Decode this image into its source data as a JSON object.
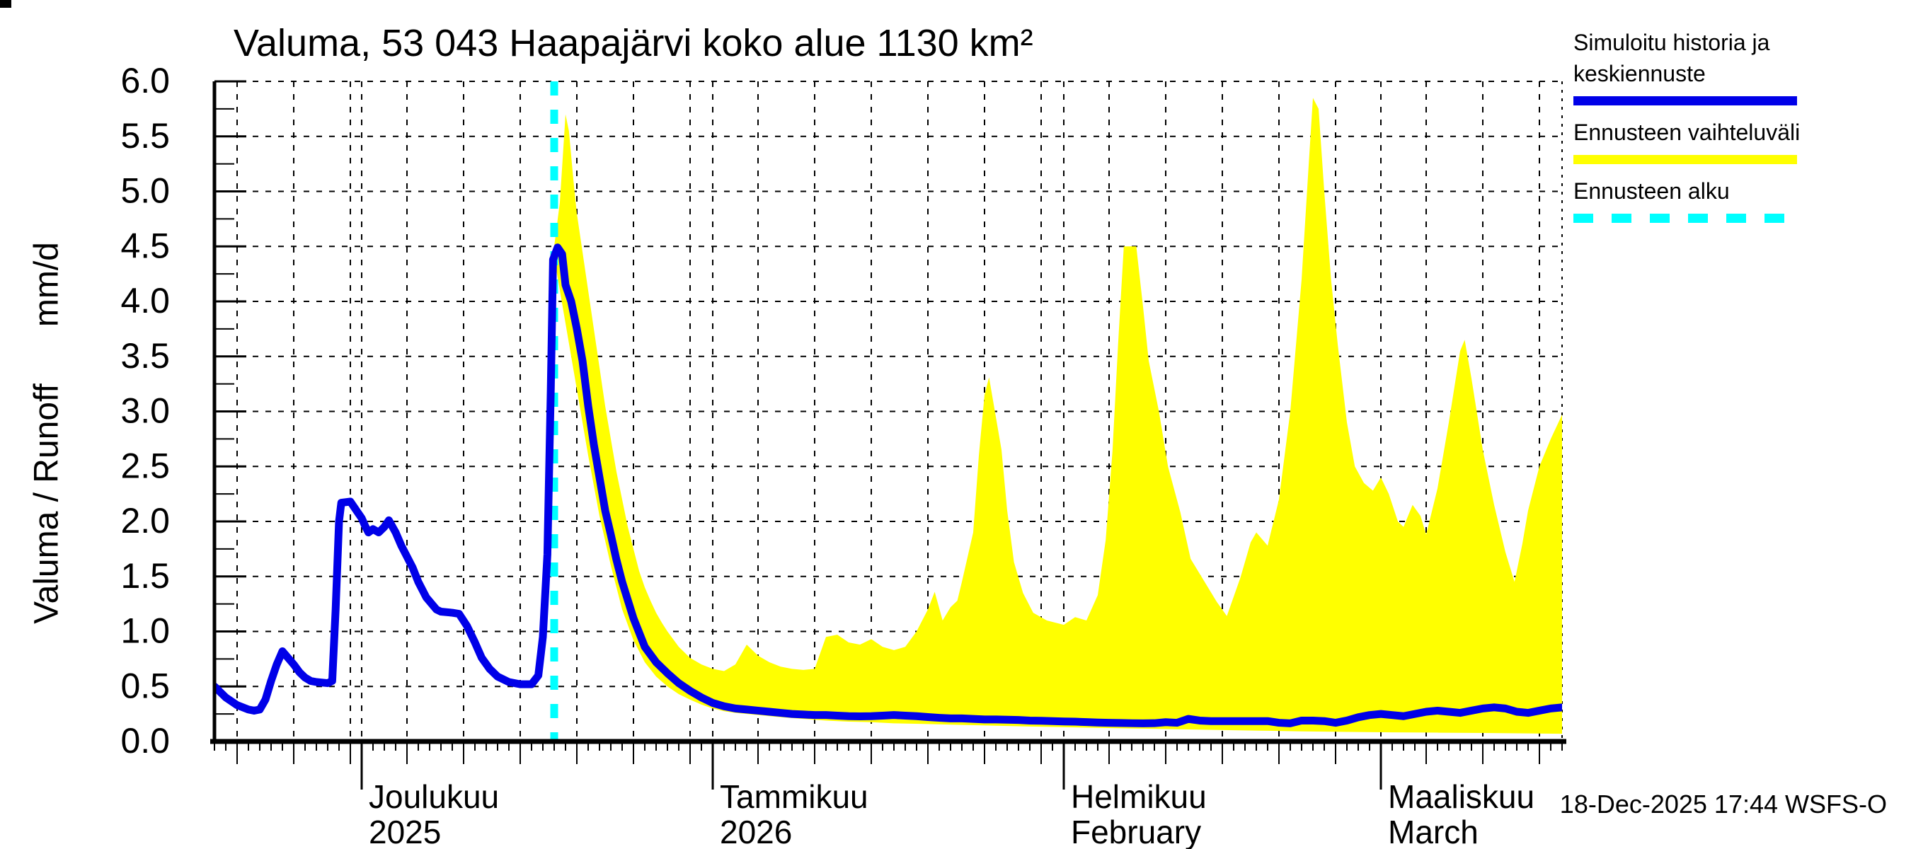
{
  "title": "Valuma, 53 043 Haapajärvi koko alue 1130 km²",
  "timestamp": "18-Dec-2025 17:44 WSFS-O",
  "y_axis": {
    "label": "Valuma / Runoff      mm/d",
    "ticks": [
      {
        "v": 0.0,
        "label": "0.0"
      },
      {
        "v": 0.5,
        "label": "0.5"
      },
      {
        "v": 1.0,
        "label": "1.0"
      },
      {
        "v": 1.5,
        "label": "1.5"
      },
      {
        "v": 2.0,
        "label": "2.0"
      },
      {
        "v": 2.5,
        "label": "2.5"
      },
      {
        "v": 3.0,
        "label": "3.0"
      },
      {
        "v": 3.5,
        "label": "3.5"
      },
      {
        "v": 4.0,
        "label": "4.0"
      },
      {
        "v": 4.5,
        "label": "4.5"
      },
      {
        "v": 5.0,
        "label": "5.0"
      },
      {
        "v": 5.5,
        "label": "5.5"
      },
      {
        "v": 6.0,
        "label": "6.0"
      }
    ]
  },
  "legend": {
    "items": [
      {
        "lines": [
          "Simuloitu historia ja",
          "keskiennuste"
        ],
        "color": "#0000e8",
        "style": "solid"
      },
      {
        "lines": [
          "Ennusteen vaihteluväli"
        ],
        "color": "#ffff00",
        "style": "solid"
      },
      {
        "lines": [
          "Ennusteen alku"
        ],
        "color": "#00ffff",
        "style": "dashed"
      }
    ]
  },
  "chart_data": {
    "type": "line+band",
    "title": "Valuma, 53 043 Haapajärvi koko alue 1130 km²",
    "ylabel": "Valuma / Runoff mm/d",
    "ylim": [
      0,
      6
    ],
    "xlim": [
      0,
      119
    ],
    "x_unit": "days from left edge of plot (day 13 = 1 Dec 2025)",
    "forecast_start_day": 30,
    "grid": "both, dashed",
    "colors": {
      "history_and_mean": "#0000e8",
      "range_band": "#ffff00",
      "forecast_start": "#00ffff"
    },
    "month_ticks": [
      {
        "day": 13,
        "line1": "Joulukuu",
        "line2": "2025"
      },
      {
        "day": 44,
        "line1": "Tammikuu",
        "line2": "2026"
      },
      {
        "day": 75,
        "line1": "Helmikuu",
        "line2": "February"
      },
      {
        "day": 103,
        "line1": "Maaliskuu",
        "line2": "March"
      }
    ],
    "x_grid_days": [
      2,
      7,
      12,
      13,
      17,
      22,
      27,
      32,
      37,
      42,
      44,
      48,
      53,
      58,
      63,
      68,
      73,
      75,
      79,
      84,
      89,
      94,
      99,
      103,
      107,
      112,
      117
    ],
    "series": [
      {
        "name": "Simuloitu historia ja keskiennuste (history)",
        "points": [
          [
            0,
            0.5
          ],
          [
            1,
            0.4
          ],
          [
            2,
            0.33
          ],
          [
            3,
            0.29
          ],
          [
            3.5,
            0.28
          ],
          [
            4,
            0.29
          ],
          [
            4.5,
            0.38
          ],
          [
            5,
            0.55
          ],
          [
            5.5,
            0.7
          ],
          [
            6,
            0.82
          ],
          [
            6.5,
            0.76
          ],
          [
            7,
            0.7
          ],
          [
            7.5,
            0.63
          ],
          [
            8,
            0.58
          ],
          [
            8.5,
            0.55
          ],
          [
            9,
            0.54
          ],
          [
            10,
            0.53
          ],
          [
            10.4,
            0.55
          ],
          [
            10.7,
            1.2
          ],
          [
            11,
            2.0
          ],
          [
            11.2,
            2.17
          ],
          [
            12,
            2.18
          ],
          [
            12.4,
            2.12
          ],
          [
            13,
            2.03
          ],
          [
            13.3,
            1.96
          ],
          [
            13.6,
            1.9
          ],
          [
            14,
            1.93
          ],
          [
            14.5,
            1.9
          ],
          [
            15,
            1.95
          ],
          [
            15.4,
            2.01
          ],
          [
            16,
            1.9
          ],
          [
            16.5,
            1.78
          ],
          [
            17,
            1.68
          ],
          [
            17.5,
            1.58
          ],
          [
            18,
            1.45
          ],
          [
            18.7,
            1.31
          ],
          [
            19.6,
            1.2
          ],
          [
            20,
            1.18
          ],
          [
            21,
            1.17
          ],
          [
            21.6,
            1.16
          ],
          [
            22.3,
            1.05
          ],
          [
            23,
            0.9
          ],
          [
            23.6,
            0.76
          ],
          [
            24.3,
            0.66
          ],
          [
            25,
            0.59
          ],
          [
            26,
            0.54
          ],
          [
            27,
            0.52
          ],
          [
            28,
            0.52
          ],
          [
            28.6,
            0.6
          ],
          [
            29,
            0.95
          ],
          [
            29.4,
            1.7
          ],
          [
            29.7,
            3.2
          ],
          [
            29.9,
            4.38
          ],
          [
            30.3,
            4.49
          ],
          [
            30.7,
            4.43
          ]
        ]
      },
      {
        "name": "Simuloitu historia ja keskiennuste (mean forecast)",
        "points": [
          [
            30.7,
            4.43
          ],
          [
            31,
            4.15
          ],
          [
            31.5,
            4.0
          ],
          [
            32,
            3.75
          ],
          [
            32.5,
            3.46
          ],
          [
            33,
            3.05
          ],
          [
            33.5,
            2.7
          ],
          [
            34,
            2.4
          ],
          [
            34.5,
            2.1
          ],
          [
            35,
            1.88
          ],
          [
            35.5,
            1.65
          ],
          [
            36,
            1.45
          ],
          [
            37,
            1.12
          ],
          [
            38,
            0.86
          ],
          [
            39,
            0.72
          ],
          [
            40,
            0.62
          ],
          [
            41,
            0.53
          ],
          [
            42,
            0.46
          ],
          [
            43,
            0.4
          ],
          [
            44,
            0.35
          ],
          [
            45,
            0.32
          ],
          [
            46,
            0.3
          ],
          [
            47,
            0.29
          ],
          [
            48,
            0.28
          ],
          [
            49,
            0.27
          ],
          [
            50,
            0.26
          ],
          [
            51,
            0.25
          ],
          [
            52,
            0.245
          ],
          [
            53,
            0.24
          ],
          [
            54,
            0.24
          ],
          [
            55,
            0.235
          ],
          [
            56,
            0.23
          ],
          [
            57,
            0.228
          ],
          [
            58,
            0.23
          ],
          [
            59,
            0.235
          ],
          [
            60,
            0.24
          ],
          [
            61,
            0.235
          ],
          [
            62,
            0.23
          ],
          [
            63,
            0.222
          ],
          [
            64,
            0.215
          ],
          [
            65,
            0.21
          ],
          [
            66,
            0.21
          ],
          [
            67,
            0.205
          ],
          [
            68,
            0.2
          ],
          [
            69,
            0.2
          ],
          [
            70,
            0.198
          ],
          [
            71,
            0.195
          ],
          [
            72,
            0.19
          ],
          [
            73,
            0.188
          ],
          [
            74,
            0.185
          ],
          [
            75,
            0.182
          ],
          [
            76,
            0.18
          ],
          [
            77,
            0.176
          ],
          [
            78,
            0.172
          ],
          [
            79,
            0.17
          ],
          [
            80,
            0.168
          ],
          [
            81,
            0.166
          ],
          [
            82,
            0.165
          ],
          [
            83,
            0.166
          ],
          [
            84,
            0.175
          ],
          [
            85,
            0.17
          ],
          [
            86,
            0.205
          ],
          [
            87,
            0.19
          ],
          [
            88,
            0.185
          ],
          [
            89,
            0.185
          ],
          [
            90,
            0.185
          ],
          [
            91,
            0.185
          ],
          [
            92,
            0.185
          ],
          [
            93,
            0.185
          ],
          [
            94,
            0.17
          ],
          [
            95,
            0.165
          ],
          [
            96,
            0.19
          ],
          [
            97,
            0.19
          ],
          [
            98,
            0.185
          ],
          [
            99,
            0.17
          ],
          [
            100,
            0.19
          ],
          [
            101,
            0.22
          ],
          [
            102,
            0.24
          ],
          [
            103,
            0.25
          ],
          [
            104,
            0.24
          ],
          [
            105,
            0.23
          ],
          [
            106,
            0.25
          ],
          [
            107,
            0.27
          ],
          [
            108,
            0.28
          ],
          [
            109,
            0.27
          ],
          [
            110,
            0.26
          ],
          [
            111,
            0.28
          ],
          [
            112,
            0.3
          ],
          [
            113,
            0.31
          ],
          [
            114,
            0.3
          ],
          [
            115,
            0.27
          ],
          [
            116,
            0.26
          ],
          [
            117,
            0.28
          ],
          [
            118,
            0.3
          ],
          [
            119,
            0.31
          ]
        ]
      }
    ],
    "band": {
      "name": "Ennusteen vaihteluväli",
      "upper": [
        [
          30,
          4.5
        ],
        [
          30.5,
          4.9
        ],
        [
          31,
          5.7
        ],
        [
          31.3,
          5.55
        ],
        [
          31.7,
          5.1
        ],
        [
          32,
          4.8
        ],
        [
          32.5,
          4.45
        ],
        [
          33,
          4.1
        ],
        [
          33.5,
          3.75
        ],
        [
          34,
          3.4
        ],
        [
          34.5,
          3.05
        ],
        [
          35,
          2.75
        ],
        [
          35.5,
          2.45
        ],
        [
          36,
          2.2
        ],
        [
          36.5,
          1.95
        ],
        [
          37,
          1.75
        ],
        [
          37.5,
          1.55
        ],
        [
          38,
          1.4
        ],
        [
          38.5,
          1.28
        ],
        [
          39,
          1.17
        ],
        [
          39.5,
          1.08
        ],
        [
          40,
          1.0
        ],
        [
          41,
          0.86
        ],
        [
          42,
          0.76
        ],
        [
          43,
          0.7
        ],
        [
          44,
          0.66
        ],
        [
          45,
          0.64
        ],
        [
          46,
          0.7
        ],
        [
          47,
          0.88
        ],
        [
          48,
          0.78
        ],
        [
          49,
          0.72
        ],
        [
          50,
          0.68
        ],
        [
          51,
          0.66
        ],
        [
          52,
          0.65
        ],
        [
          53,
          0.66
        ],
        [
          54,
          0.95
        ],
        [
          55,
          0.97
        ],
        [
          56,
          0.9
        ],
        [
          57,
          0.88
        ],
        [
          58,
          0.93
        ],
        [
          59,
          0.86
        ],
        [
          60,
          0.83
        ],
        [
          61,
          0.86
        ],
        [
          62,
          1.0
        ],
        [
          63,
          1.2
        ],
        [
          63.6,
          1.36
        ],
        [
          64.3,
          1.1
        ],
        [
          65,
          1.22
        ],
        [
          65.6,
          1.28
        ],
        [
          66,
          1.45
        ],
        [
          67,
          1.9
        ],
        [
          67.5,
          2.6
        ],
        [
          68,
          3.15
        ],
        [
          68.4,
          3.31
        ],
        [
          69,
          2.95
        ],
        [
          69.5,
          2.65
        ],
        [
          70,
          2.1
        ],
        [
          70.6,
          1.63
        ],
        [
          71.4,
          1.35
        ],
        [
          72.3,
          1.17
        ],
        [
          73.5,
          1.1
        ],
        [
          75,
          1.06
        ],
        [
          76,
          1.13
        ],
        [
          77,
          1.1
        ],
        [
          78,
          1.33
        ],
        [
          78.7,
          1.83
        ],
        [
          79.3,
          2.64
        ],
        [
          79.8,
          3.62
        ],
        [
          80.3,
          4.5
        ],
        [
          81.4,
          4.5
        ],
        [
          82,
          3.95
        ],
        [
          82.5,
          3.46
        ],
        [
          83.4,
          3.0
        ],
        [
          84.2,
          2.5
        ],
        [
          85.3,
          2.08
        ],
        [
          86.2,
          1.66
        ],
        [
          87.5,
          1.44
        ],
        [
          88.5,
          1.27
        ],
        [
          89.4,
          1.14
        ],
        [
          90.6,
          1.49
        ],
        [
          91.5,
          1.81
        ],
        [
          92,
          1.9
        ],
        [
          93,
          1.78
        ],
        [
          94,
          2.2
        ],
        [
          95,
          3.0
        ],
        [
          96,
          4.2
        ],
        [
          96.6,
          5.2
        ],
        [
          97,
          5.85
        ],
        [
          97.5,
          5.75
        ],
        [
          98,
          5.0
        ],
        [
          98.6,
          4.2
        ],
        [
          99.2,
          3.6
        ],
        [
          100,
          2.9
        ],
        [
          100.7,
          2.5
        ],
        [
          101.5,
          2.35
        ],
        [
          102.3,
          2.28
        ],
        [
          103,
          2.4
        ],
        [
          103.7,
          2.25
        ],
        [
          104.5,
          2.0
        ],
        [
          105,
          1.95
        ],
        [
          105.8,
          2.15
        ],
        [
          106.5,
          2.05
        ],
        [
          107,
          1.88
        ],
        [
          108,
          2.3
        ],
        [
          109,
          2.9
        ],
        [
          110,
          3.55
        ],
        [
          110.4,
          3.65
        ],
        [
          111,
          3.3
        ],
        [
          112,
          2.65
        ],
        [
          113,
          2.15
        ],
        [
          114,
          1.72
        ],
        [
          114.8,
          1.45
        ],
        [
          115.5,
          1.8
        ],
        [
          116,
          2.1
        ],
        [
          117,
          2.5
        ],
        [
          118,
          2.75
        ],
        [
          119,
          2.97
        ]
      ],
      "lower": [
        [
          30,
          4.4
        ],
        [
          31,
          3.8
        ],
        [
          32,
          3.2
        ],
        [
          33,
          2.6
        ],
        [
          34,
          2.05
        ],
        [
          35,
          1.6
        ],
        [
          36,
          1.2
        ],
        [
          37,
          0.92
        ],
        [
          38,
          0.72
        ],
        [
          39,
          0.59
        ],
        [
          40,
          0.5
        ],
        [
          41,
          0.43
        ],
        [
          42,
          0.38
        ],
        [
          43,
          0.335
        ],
        [
          44,
          0.3
        ],
        [
          45,
          0.275
        ],
        [
          46,
          0.26
        ],
        [
          47,
          0.25
        ],
        [
          48,
          0.24
        ],
        [
          50,
          0.22
        ],
        [
          52,
          0.205
        ],
        [
          54,
          0.19
        ],
        [
          56,
          0.18
        ],
        [
          58,
          0.175
        ],
        [
          60,
          0.165
        ],
        [
          63,
          0.158
        ],
        [
          66,
          0.15
        ],
        [
          69,
          0.143
        ],
        [
          72,
          0.136
        ],
        [
          75,
          0.13
        ],
        [
          78,
          0.124
        ],
        [
          81,
          0.118
        ],
        [
          84,
          0.113
        ],
        [
          87,
          0.108
        ],
        [
          90,
          0.102
        ],
        [
          93,
          0.097
        ],
        [
          96,
          0.092
        ],
        [
          100,
          0.087
        ],
        [
          104,
          0.083
        ],
        [
          108,
          0.08
        ],
        [
          112,
          0.077
        ],
        [
          116,
          0.073
        ],
        [
          119,
          0.07
        ]
      ]
    }
  }
}
